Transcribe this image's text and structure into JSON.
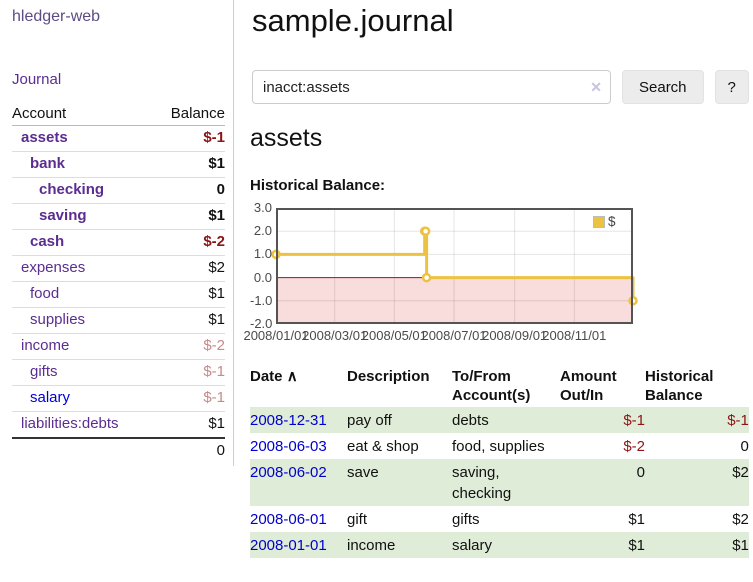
{
  "sidebar": {
    "app_title": "hledger-web",
    "journal_label": "Journal",
    "accounts_table": {
      "headers": {
        "account": "Account",
        "balance": "Balance"
      },
      "rows": [
        {
          "name": "assets",
          "indent": 1,
          "bold": true,
          "balance": "$-1",
          "tone": "neg-strong"
        },
        {
          "name": "bank",
          "indent": 2,
          "bold": true,
          "balance": "$1",
          "tone": "normal"
        },
        {
          "name": "checking",
          "indent": 3,
          "bold": true,
          "balance": "0",
          "tone": "normal"
        },
        {
          "name": "saving",
          "indent": 3,
          "bold": true,
          "balance": "$1",
          "tone": "normal"
        },
        {
          "name": "cash",
          "indent": 2,
          "bold": true,
          "balance": "$-2",
          "tone": "neg-strong"
        },
        {
          "name": "expenses",
          "indent": 1,
          "bold": false,
          "balance": "$2",
          "tone": "normal"
        },
        {
          "name": "food",
          "indent": 2,
          "bold": false,
          "balance": "$1",
          "tone": "normal"
        },
        {
          "name": "supplies",
          "indent": 2,
          "bold": false,
          "balance": "$1",
          "tone": "normal"
        },
        {
          "name": "income",
          "indent": 1,
          "bold": false,
          "balance": "$-2",
          "tone": "neg-soft"
        },
        {
          "name": "gifts",
          "indent": 2,
          "bold": false,
          "balance": "$-1",
          "tone": "neg-soft"
        },
        {
          "name": "salary",
          "indent": 2,
          "bold": false,
          "balance": "$-1",
          "tone": "neg-soft",
          "link_color": "blue"
        },
        {
          "name": "liabilities:debts",
          "indent": 1,
          "bold": false,
          "balance": "$1",
          "tone": "normal"
        }
      ],
      "total": "0"
    }
  },
  "main": {
    "title": "sample.journal",
    "search": {
      "value": "inacct:assets",
      "placeholder": "",
      "clear_icon": "✕",
      "button_label": "Search",
      "help_label": "?"
    },
    "account_heading": "assets",
    "chart_label": "Historical Balance:",
    "register_table": {
      "headers": {
        "date": "Date",
        "sort_icon": "∧",
        "description": "Description",
        "accounts": "To/From Account(s)",
        "amount": "Amount Out/In",
        "balance": "Historical Balance"
      },
      "rows": [
        {
          "date": "2008-12-31",
          "description": "pay off",
          "accounts": "debts",
          "amount": "$-1",
          "amount_negative": true,
          "balance": "$-1",
          "balance_negative": true
        },
        {
          "date": "2008-06-03",
          "description": "eat & shop",
          "accounts": "food, supplies",
          "amount": "$-2",
          "amount_negative": true,
          "balance": "0",
          "balance_negative": false
        },
        {
          "date": "2008-06-02",
          "description": "save",
          "accounts": "saving, checking",
          "amount": "0",
          "amount_negative": false,
          "balance": "$2",
          "balance_negative": false
        },
        {
          "date": "2008-06-01",
          "description": "gift",
          "accounts": "gifts",
          "amount": "$1",
          "amount_negative": false,
          "balance": "$2",
          "balance_negative": false
        },
        {
          "date": "2008-01-01",
          "description": "income",
          "accounts": "salary",
          "amount": "$1",
          "amount_negative": false,
          "balance": "$1",
          "balance_negative": false
        }
      ]
    }
  },
  "chart_data": {
    "type": "line",
    "style": "steps",
    "title": "Historical Balance:",
    "x_unit": "days since 2008-01-01",
    "xlim": [
      0,
      365
    ],
    "ylim": [
      -2,
      3
    ],
    "x_ticks": [
      {
        "pos": 0,
        "label": "2008/01/01"
      },
      {
        "pos": 60,
        "label": "2008/03/01"
      },
      {
        "pos": 121,
        "label": "2008/05/01"
      },
      {
        "pos": 182,
        "label": "2008/07/01"
      },
      {
        "pos": 244,
        "label": "2008/09/01"
      },
      {
        "pos": 305,
        "label": "2008/11/01"
      }
    ],
    "y_ticks": [
      3,
      2,
      1,
      0,
      -1,
      -2
    ],
    "grid": true,
    "legend": {
      "label": "$",
      "position": "top-right"
    },
    "series": [
      {
        "name": "$",
        "color": "#edc240",
        "points": [
          {
            "date": "2008-01-01",
            "pos": 0,
            "value": 1
          },
          {
            "date": "2008-06-01",
            "pos": 152,
            "value": 2
          },
          {
            "date": "2008-06-02",
            "pos": 153,
            "value": 2
          },
          {
            "date": "2008-06-03",
            "pos": 154,
            "value": 0
          },
          {
            "date": "2008-12-31",
            "pos": 365,
            "value": -1
          }
        ]
      }
    ],
    "negative_region_fill": "#f9dcdc",
    "zero_line_color": "#8b1a1a",
    "plot_border_color": "#545454"
  },
  "colors": {
    "accent_purple": "#5b2d91",
    "link_blue": "#0000dd",
    "negative_strong": "#8c1515",
    "negative_soft": "#c68a8a",
    "row_stripe_green": "#dfecd8",
    "chart_line_gold": "#edc240",
    "chart_negative_fill": "#f9dcdc",
    "chart_zero_line": "#8b1a1a"
  }
}
